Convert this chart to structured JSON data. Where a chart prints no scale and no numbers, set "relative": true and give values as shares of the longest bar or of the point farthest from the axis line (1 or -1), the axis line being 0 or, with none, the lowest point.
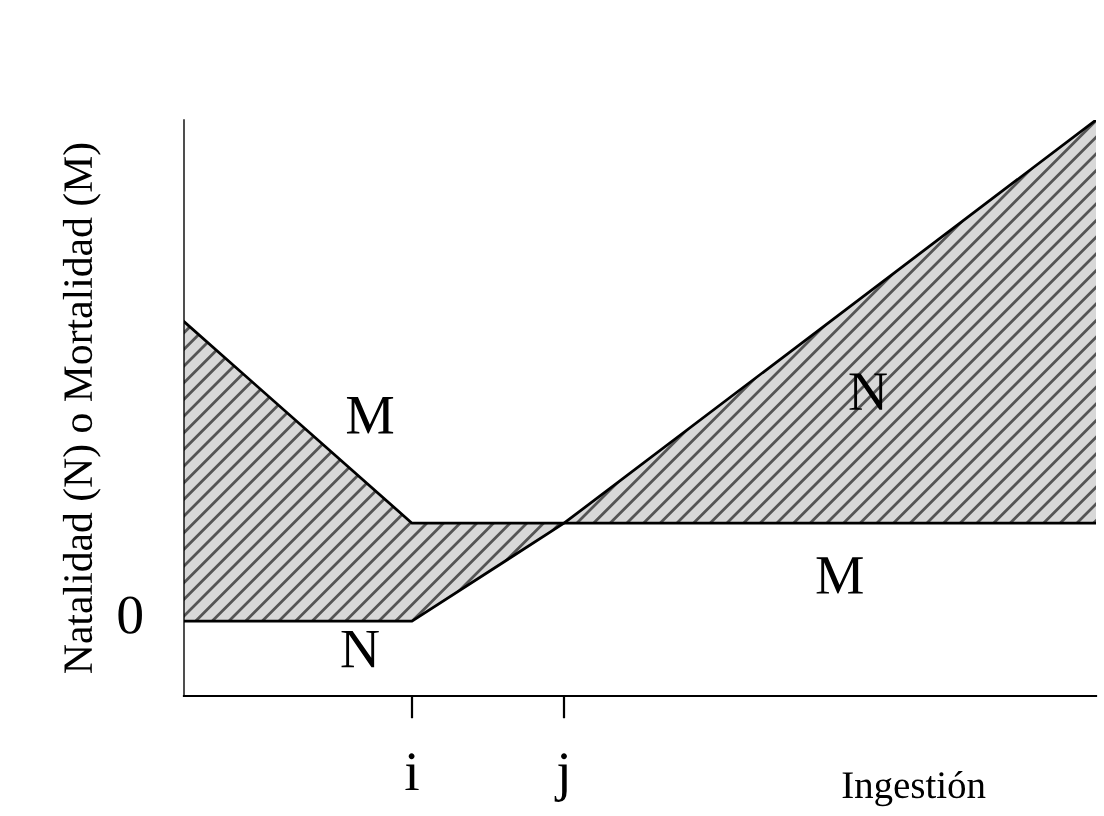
{
  "chart_data": {
    "type": "line",
    "relative": true,
    "xlabel": "Ingestión",
    "ylabel": "Natalidad (N) o Mortalidad (M)",
    "categories": [
      null,
      null,
      null,
      "i",
      null,
      "j",
      null,
      null,
      null,
      null,
      null,
      null,
      null
    ],
    "series": [
      {
        "color": "#000000",
        "values": [
          0.65,
          null,
          null,
          0.3,
          null,
          null,
          null,
          null,
          null,
          null,
          null,
          null,
          0.3
        ],
        "lower": [
          0.13,
          null,
          null,
          0.13,
          null,
          0.3,
          null,
          null,
          null,
          null,
          null,
          null,
          0.3
        ],
        "upper": [
          0.65,
          null,
          null,
          0.3,
          null,
          0.3,
          null,
          null,
          null,
          null,
          null,
          null,
          1
        ]
      },
      {
        "color": "#000000",
        "values": [
          0.13,
          null,
          null,
          0.13,
          null,
          0.3,
          null,
          null,
          null,
          null,
          null,
          null,
          1
        ]
      }
    ],
    "annotations": [
      "M",
      "M",
      "N",
      "N",
      "0"
    ],
    "grid": false,
    "legend": false,
    "marker": "none",
    "line_style": "solid"
  }
}
